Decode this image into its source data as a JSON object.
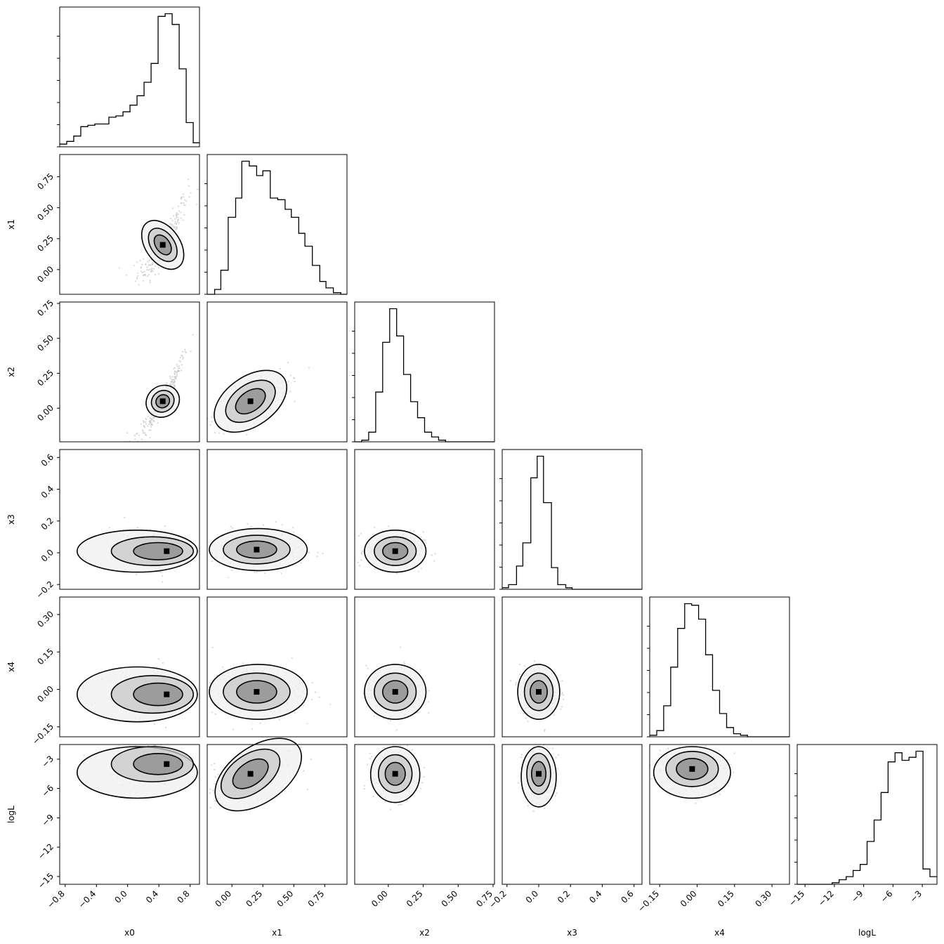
{
  "chart_data": {
    "type": "corner",
    "params": [
      {
        "name": "x0",
        "range": [
          -0.87,
          0.92
        ],
        "ticks": [
          -0.8,
          -0.4,
          0.0,
          0.4,
          0.8
        ],
        "tick_labels": [
          "−0.8",
          "−0.4",
          "0.0",
          "0.4",
          "0.8"
        ]
      },
      {
        "name": "x1",
        "range": [
          -0.2,
          0.93
        ],
        "ticks": [
          0.0,
          0.25,
          0.5,
          0.75
        ],
        "tick_labels": [
          "0.00",
          "0.25",
          "0.50",
          "0.75"
        ]
      },
      {
        "name": "x2",
        "range": [
          -0.24,
          0.76
        ],
        "ticks": [
          0.0,
          0.25,
          0.5,
          0.75
        ],
        "tick_labels": [
          "0.00",
          "0.25",
          "0.50",
          "0.75"
        ]
      },
      {
        "name": "x3",
        "range": [
          -0.23,
          0.65
        ],
        "ticks": [
          -0.2,
          0.0,
          0.2,
          0.4,
          0.6
        ],
        "tick_labels": [
          "−0.2",
          "0.0",
          "0.2",
          "0.4",
          "0.6"
        ]
      },
      {
        "name": "x4",
        "range": [
          -0.19,
          0.37
        ],
        "ticks": [
          -0.15,
          0.0,
          0.15,
          0.3
        ],
        "tick_labels": [
          "−0.15",
          "0.00",
          "0.15",
          "0.30"
        ]
      },
      {
        "name": "logL",
        "range": [
          -15.8,
          -1.5
        ],
        "ticks": [
          -15,
          -12,
          -9,
          -6,
          -3
        ],
        "tick_labels": [
          "−15",
          "−12",
          "−9",
          "−6",
          "−3"
        ]
      }
    ],
    "histograms": [
      {
        "param": "x0",
        "bin_edges": [
          -0.87,
          -0.78,
          -0.69,
          -0.6,
          -0.51,
          -0.42,
          -0.33,
          -0.24,
          -0.15,
          -0.06,
          0.03,
          0.12,
          0.21,
          0.3,
          0.39,
          0.48,
          0.57,
          0.66,
          0.75,
          0.84,
          0.92
        ],
        "counts": [
          2,
          4,
          8,
          15,
          16,
          17,
          17,
          22,
          23,
          26,
          31,
          38,
          48,
          62,
          97,
          99,
          91,
          58,
          18,
          3
        ]
      },
      {
        "param": "x1",
        "bin_edges": [
          -0.2,
          -0.14,
          -0.09,
          -0.03,
          0.03,
          0.08,
          0.14,
          0.2,
          0.25,
          0.31,
          0.37,
          0.43,
          0.48,
          0.54,
          0.59,
          0.65,
          0.71,
          0.76,
          0.82,
          0.88,
          0.93
        ],
        "counts": [
          0,
          3,
          15,
          48,
          60,
          83,
          80,
          74,
          77,
          60,
          59,
          53,
          48,
          38,
          30,
          18,
          8,
          4,
          1,
          0
        ]
      },
      {
        "param": "x2",
        "bin_edges": [
          -0.24,
          -0.19,
          -0.14,
          -0.09,
          -0.04,
          0.01,
          0.06,
          0.11,
          0.16,
          0.21,
          0.26,
          0.31,
          0.36,
          0.41,
          0.46,
          0.51,
          0.56,
          0.61,
          0.66,
          0.71,
          0.76
        ],
        "counts": [
          0,
          1,
          6,
          31,
          62,
          83,
          66,
          42,
          25,
          15,
          6,
          3,
          1,
          0,
          0,
          0,
          0,
          0,
          0,
          0
        ]
      },
      {
        "param": "x3",
        "bin_edges": [
          -0.23,
          -0.19,
          -0.14,
          -0.1,
          -0.05,
          -0.01,
          0.03,
          0.08,
          0.12,
          0.17,
          0.21,
          0.25,
          0.3,
          0.34,
          0.39,
          0.43,
          0.47,
          0.52,
          0.56,
          0.61,
          0.65
        ],
        "counts": [
          1,
          3,
          15,
          30,
          72,
          86,
          56,
          14,
          3,
          1,
          0,
          0,
          0,
          0,
          0,
          0,
          0,
          0,
          0,
          0
        ]
      },
      {
        "param": "x4",
        "bin_edges": [
          -0.19,
          -0.162,
          -0.134,
          -0.106,
          -0.078,
          -0.05,
          -0.022,
          0.006,
          0.034,
          0.062,
          0.09,
          0.118,
          0.146,
          0.174,
          0.202,
          0.23,
          0.258,
          0.286,
          0.314,
          0.342,
          0.37
        ],
        "counts": [
          1,
          4,
          20,
          45,
          70,
          86,
          85,
          76,
          53,
          30,
          15,
          6,
          2,
          1,
          0,
          0,
          0,
          0,
          0,
          0
        ]
      },
      {
        "param": "logL",
        "bin_edges": [
          -15.8,
          -15.08,
          -14.37,
          -13.66,
          -12.94,
          -12.22,
          -11.51,
          -10.79,
          -10.08,
          -9.36,
          -8.65,
          -7.93,
          -7.22,
          -6.5,
          -5.79,
          -5.08,
          -4.36,
          -3.65,
          -2.93,
          -2.22,
          -1.5
        ],
        "counts": [
          0,
          0,
          0,
          0,
          0,
          1,
          3,
          5,
          9,
          13,
          28,
          42,
          60,
          80,
          86,
          81,
          83,
          87,
          10,
          5
        ]
      }
    ],
    "panels": [
      {
        "x": "x0",
        "y": "x1",
        "center": [
          0.45,
          0.2
        ],
        "shape": "banana",
        "sigma": [
          0.1,
          0.1
        ]
      },
      {
        "x": "x0",
        "y": "x2",
        "center": [
          0.45,
          0.05
        ],
        "shape": "banana",
        "sigma": [
          0.1,
          0.05
        ]
      },
      {
        "x": "x1",
        "y": "x2",
        "center": [
          0.15,
          0.05
        ],
        "shape": "tilted",
        "sigma": [
          0.15,
          0.08
        ]
      },
      {
        "x": "x0",
        "y": "x3",
        "center": [
          0.5,
          0.01
        ],
        "shape": "tail-left",
        "sigma": [
          0.35,
          0.06
        ]
      },
      {
        "x": "x1",
        "y": "x3",
        "center": [
          0.2,
          0.02
        ],
        "shape": "ellipse",
        "sigma": [
          0.18,
          0.06
        ]
      },
      {
        "x": "x2",
        "y": "x3",
        "center": [
          0.05,
          0.01
        ],
        "shape": "ellipse",
        "sigma": [
          0.1,
          0.06
        ]
      },
      {
        "x": "x0",
        "y": "x4",
        "center": [
          0.5,
          -0.02
        ],
        "shape": "tail-left",
        "sigma": [
          0.35,
          0.05
        ]
      },
      {
        "x": "x1",
        "y": "x4",
        "center": [
          0.2,
          -0.01
        ],
        "shape": "ellipse",
        "sigma": [
          0.18,
          0.05
        ]
      },
      {
        "x": "x2",
        "y": "x4",
        "center": [
          0.05,
          -0.01
        ],
        "shape": "ellipse",
        "sigma": [
          0.1,
          0.05
        ]
      },
      {
        "x": "x3",
        "y": "x4",
        "center": [
          0.0,
          -0.01
        ],
        "shape": "ellipse",
        "sigma": [
          0.06,
          0.05
        ]
      },
      {
        "x": "x0",
        "y": "logL",
        "center": [
          0.5,
          -3.5
        ],
        "shape": "tail-left",
        "sigma": [
          0.35,
          1.2
        ]
      },
      {
        "x": "x1",
        "y": "logL",
        "center": [
          0.15,
          -4.5
        ],
        "shape": "tilted",
        "sigma": [
          0.18,
          1.3
        ]
      },
      {
        "x": "x2",
        "y": "logL",
        "center": [
          0.05,
          -4.5
        ],
        "shape": "ellipse",
        "sigma": [
          0.08,
          1.3
        ]
      },
      {
        "x": "x3",
        "y": "logL",
        "center": [
          0.0,
          -4.5
        ],
        "shape": "ellipse",
        "sigma": [
          0.05,
          1.4
        ]
      },
      {
        "x": "x4",
        "y": "logL",
        "center": [
          -0.02,
          -4.0
        ],
        "shape": "ellipse",
        "sigma": [
          0.07,
          1.2
        ]
      }
    ],
    "colors": {
      "line": "#000000",
      "points": "#bdbdbd",
      "background": "#ffffff"
    },
    "grid": false
  }
}
